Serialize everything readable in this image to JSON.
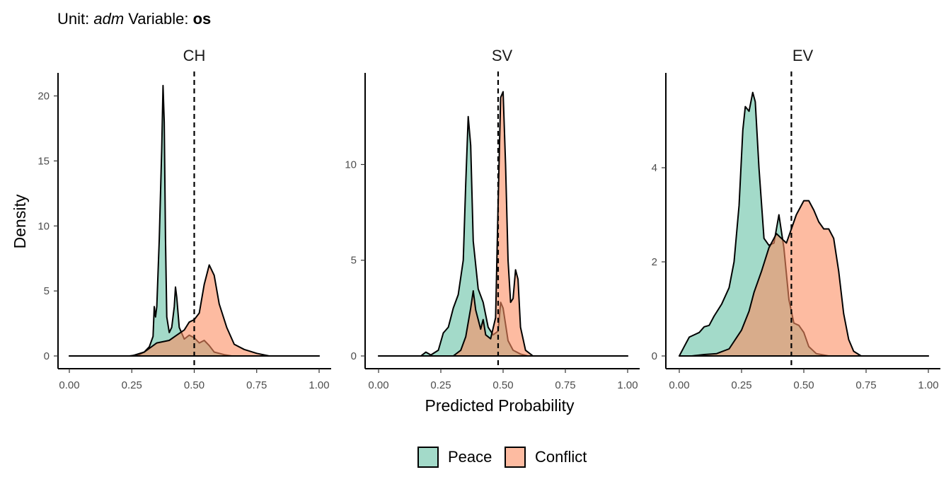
{
  "title": {
    "prefix": "Unit: ",
    "unit": "adm",
    "middle": " Variable: ",
    "variable": "os"
  },
  "colors": {
    "peace": "#66c2a5",
    "conflict": "#fc8d62"
  },
  "chart_data": {
    "type": "area",
    "xlabel": "Predicted Probability",
    "ylabel": "Density",
    "legend_position": "bottom",
    "legend": [
      {
        "key": "peace",
        "label": "Peace"
      },
      {
        "key": "conflict",
        "label": "Conflict"
      }
    ],
    "panels": [
      {
        "name": "CH",
        "xlim": [
          0,
          1
        ],
        "ylim": [
          0,
          21.5
        ],
        "x_ticks": [
          0,
          0.25,
          0.5,
          0.75,
          1
        ],
        "x_tick_labels": [
          "0.00",
          "0.25",
          "0.50",
          "0.75",
          "1.00"
        ],
        "y_ticks": [
          0,
          5,
          10,
          15,
          20
        ],
        "y_tick_labels": [
          "0",
          "5",
          "10",
          "15",
          "20"
        ],
        "threshold": 0.5,
        "series": {
          "peace": [
            [
              0,
              0
            ],
            [
              0.24,
              0
            ],
            [
              0.28,
              0.1
            ],
            [
              0.3,
              0.3
            ],
            [
              0.32,
              0.7
            ],
            [
              0.335,
              1.5
            ],
            [
              0.34,
              3.8
            ],
            [
              0.345,
              3.0
            ],
            [
              0.35,
              3.8
            ],
            [
              0.36,
              9
            ],
            [
              0.37,
              16
            ],
            [
              0.375,
              20.8
            ],
            [
              0.38,
              18
            ],
            [
              0.385,
              9
            ],
            [
              0.39,
              3
            ],
            [
              0.4,
              1.8
            ],
            [
              0.41,
              2.2
            ],
            [
              0.42,
              3.8
            ],
            [
              0.425,
              5.3
            ],
            [
              0.43,
              4.5
            ],
            [
              0.44,
              2.2
            ],
            [
              0.46,
              1.3
            ],
            [
              0.48,
              1.6
            ],
            [
              0.5,
              1.4
            ],
            [
              0.52,
              1.0
            ],
            [
              0.54,
              1.2
            ],
            [
              0.56,
              0.8
            ],
            [
              0.58,
              0.3
            ],
            [
              0.62,
              0.1
            ],
            [
              0.65,
              0
            ],
            [
              1,
              0
            ]
          ],
          "conflict": [
            [
              0,
              0
            ],
            [
              0.25,
              0
            ],
            [
              0.3,
              0.3
            ],
            [
              0.35,
              1.0
            ],
            [
              0.4,
              1.2
            ],
            [
              0.43,
              1.6
            ],
            [
              0.46,
              2.0
            ],
            [
              0.48,
              2.6
            ],
            [
              0.5,
              2.8
            ],
            [
              0.52,
              3.3
            ],
            [
              0.54,
              5.5
            ],
            [
              0.56,
              7.0
            ],
            [
              0.58,
              6.2
            ],
            [
              0.6,
              4.0
            ],
            [
              0.63,
              2.2
            ],
            [
              0.66,
              0.9
            ],
            [
              0.7,
              0.5
            ],
            [
              0.75,
              0.2
            ],
            [
              0.8,
              0
            ],
            [
              1,
              0
            ]
          ]
        }
      },
      {
        "name": "SV",
        "xlim": [
          0,
          1
        ],
        "ylim": [
          0,
          14.6
        ],
        "x_ticks": [
          0,
          0.25,
          0.5,
          0.75,
          1
        ],
        "x_tick_labels": [
          "0.00",
          "0.25",
          "0.50",
          "0.75",
          "1.00"
        ],
        "y_ticks": [
          0,
          5,
          10
        ],
        "y_tick_labels": [
          "0",
          "5",
          "10"
        ],
        "threshold": 0.48,
        "series": {
          "peace": [
            [
              0,
              0
            ],
            [
              0.17,
              0
            ],
            [
              0.19,
              0.2
            ],
            [
              0.21,
              0.05
            ],
            [
              0.24,
              0.3
            ],
            [
              0.26,
              1.2
            ],
            [
              0.28,
              1.5
            ],
            [
              0.3,
              2.5
            ],
            [
              0.32,
              3.2
            ],
            [
              0.34,
              5.0
            ],
            [
              0.35,
              9.0
            ],
            [
              0.36,
              12.5
            ],
            [
              0.37,
              11.0
            ],
            [
              0.38,
              6.0
            ],
            [
              0.4,
              3.5
            ],
            [
              0.42,
              2.8
            ],
            [
              0.44,
              1.5
            ],
            [
              0.46,
              1.1
            ],
            [
              0.48,
              1.3
            ],
            [
              0.49,
              2.8
            ],
            [
              0.5,
              2.5
            ],
            [
              0.52,
              0.8
            ],
            [
              0.54,
              0.3
            ],
            [
              0.57,
              0.1
            ],
            [
              0.6,
              0
            ],
            [
              1,
              0
            ]
          ],
          "conflict": [
            [
              0,
              0
            ],
            [
              0.3,
              0
            ],
            [
              0.33,
              0.3
            ],
            [
              0.35,
              1.0
            ],
            [
              0.37,
              2.5
            ],
            [
              0.38,
              3.4
            ],
            [
              0.39,
              2.4
            ],
            [
              0.41,
              1.4
            ],
            [
              0.42,
              1.9
            ],
            [
              0.43,
              1.1
            ],
            [
              0.45,
              0.9
            ],
            [
              0.47,
              2.0
            ],
            [
              0.48,
              8.0
            ],
            [
              0.49,
              13.5
            ],
            [
              0.5,
              13.8
            ],
            [
              0.51,
              10.0
            ],
            [
              0.52,
              5.0
            ],
            [
              0.53,
              2.8
            ],
            [
              0.54,
              3.0
            ],
            [
              0.55,
              4.5
            ],
            [
              0.56,
              4.0
            ],
            [
              0.57,
              1.5
            ],
            [
              0.59,
              0.3
            ],
            [
              0.62,
              0
            ],
            [
              1,
              0
            ]
          ]
        }
      },
      {
        "name": "EV",
        "xlim": [
          0,
          1
        ],
        "ylim": [
          0,
          5.94
        ],
        "x_ticks": [
          0,
          0.25,
          0.5,
          0.75,
          1
        ],
        "x_tick_labels": [
          "0.00",
          "0.25",
          "0.50",
          "0.75",
          "1.00"
        ],
        "y_ticks": [
          0,
          2,
          4
        ],
        "y_tick_labels": [
          "0",
          "2",
          "4"
        ],
        "threshold": 0.45,
        "series": {
          "peace": [
            [
              0,
              0
            ],
            [
              0.02,
              0.2
            ],
            [
              0.04,
              0.4
            ],
            [
              0.06,
              0.45
            ],
            [
              0.08,
              0.5
            ],
            [
              0.1,
              0.62
            ],
            [
              0.12,
              0.65
            ],
            [
              0.14,
              0.85
            ],
            [
              0.17,
              1.1
            ],
            [
              0.2,
              1.45
            ],
            [
              0.22,
              2.0
            ],
            [
              0.24,
              3.2
            ],
            [
              0.255,
              4.8
            ],
            [
              0.265,
              5.3
            ],
            [
              0.28,
              5.2
            ],
            [
              0.295,
              5.6
            ],
            [
              0.305,
              5.4
            ],
            [
              0.32,
              4.0
            ],
            [
              0.34,
              2.5
            ],
            [
              0.36,
              2.35
            ],
            [
              0.38,
              2.4
            ],
            [
              0.4,
              3.0
            ],
            [
              0.42,
              2.3
            ],
            [
              0.44,
              1.2
            ],
            [
              0.46,
              0.7
            ],
            [
              0.48,
              0.65
            ],
            [
              0.5,
              0.5
            ],
            [
              0.52,
              0.2
            ],
            [
              0.55,
              0.05
            ],
            [
              0.6,
              0
            ],
            [
              1,
              0
            ]
          ],
          "conflict": [
            [
              0,
              0
            ],
            [
              0.05,
              0
            ],
            [
              0.1,
              0.03
            ],
            [
              0.15,
              0.05
            ],
            [
              0.2,
              0.15
            ],
            [
              0.25,
              0.55
            ],
            [
              0.28,
              0.95
            ],
            [
              0.3,
              1.35
            ],
            [
              0.33,
              1.8
            ],
            [
              0.36,
              2.3
            ],
            [
              0.38,
              2.5
            ],
            [
              0.39,
              2.6
            ],
            [
              0.41,
              2.5
            ],
            [
              0.43,
              2.4
            ],
            [
              0.45,
              2.7
            ],
            [
              0.47,
              3.0
            ],
            [
              0.5,
              3.3
            ],
            [
              0.52,
              3.3
            ],
            [
              0.54,
              3.1
            ],
            [
              0.56,
              2.85
            ],
            [
              0.58,
              2.7
            ],
            [
              0.6,
              2.7
            ],
            [
              0.62,
              2.5
            ],
            [
              0.64,
              1.8
            ],
            [
              0.66,
              0.9
            ],
            [
              0.68,
              0.35
            ],
            [
              0.7,
              0.1
            ],
            [
              0.73,
              0
            ],
            [
              1,
              0
            ]
          ]
        }
      }
    ]
  }
}
